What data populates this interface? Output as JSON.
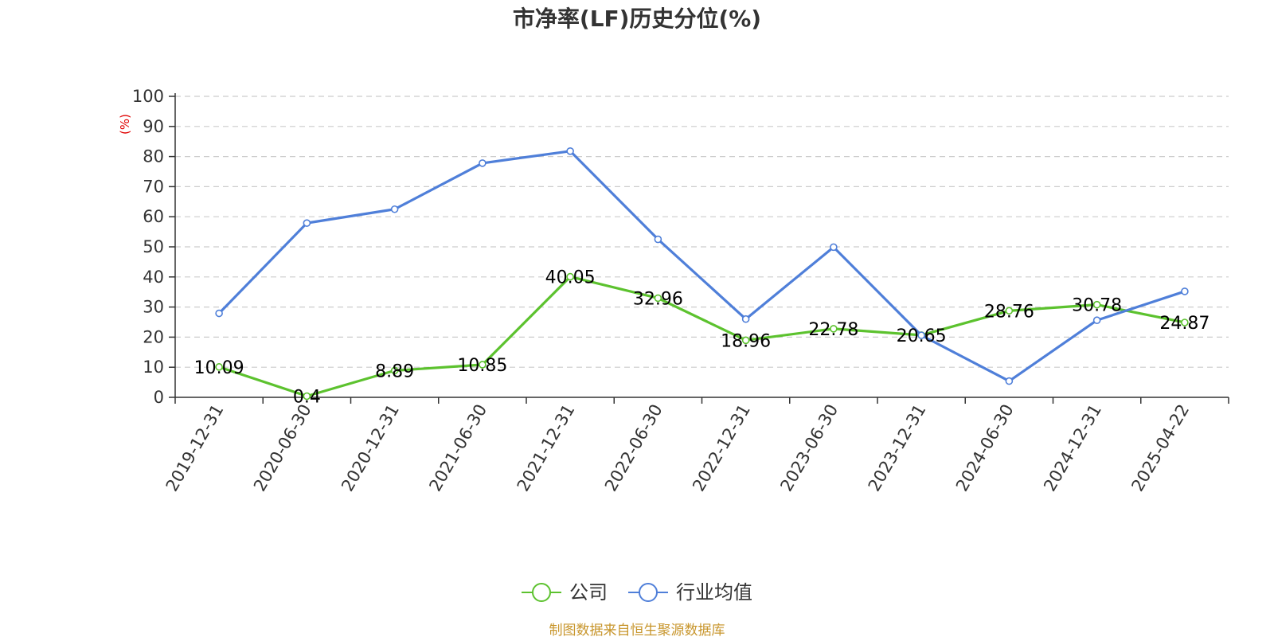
{
  "chart_data": {
    "type": "line",
    "title": "市净率(LF)历史分位(%)",
    "ylabel": "(%)",
    "ylim": [
      0,
      100
    ],
    "yticks": [
      0,
      10,
      20,
      30,
      40,
      50,
      60,
      70,
      80,
      90,
      100
    ],
    "grid": true,
    "legend_position": "bottom-center",
    "categories": [
      "2019-12-31",
      "2020-06-30",
      "2020-12-31",
      "2021-06-30",
      "2021-12-31",
      "2022-06-30",
      "2022-12-31",
      "2023-06-30",
      "2023-12-31",
      "2024-06-30",
      "2024-12-31",
      "2025-04-22"
    ],
    "series": [
      {
        "name": "公司",
        "color": "#5cc22e",
        "values": [
          10.09,
          0.4,
          8.89,
          10.85,
          40.05,
          32.96,
          18.96,
          22.78,
          20.65,
          28.76,
          30.78,
          24.87
        ],
        "show_labels": true
      },
      {
        "name": "行业均值",
        "color": "#4f7fd9",
        "values": [
          27.9,
          57.9,
          62.5,
          77.8,
          81.8,
          52.5,
          26.0,
          49.9,
          20.6,
          5.4,
          25.6,
          35.2
        ],
        "show_labels": false
      }
    ]
  },
  "colors": {
    "axis": "#333333",
    "grid": "#cccccc",
    "ylabel": "#e00000",
    "source": "#c8962d"
  },
  "source_text": "制图数据来自恒生聚源数据库"
}
